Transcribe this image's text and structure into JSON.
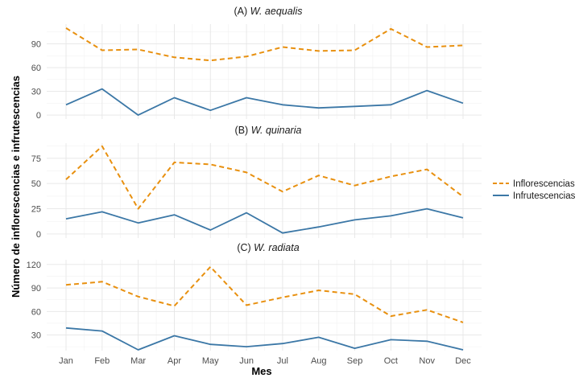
{
  "chart_data": {
    "type": "line",
    "xlabel": "Mes",
    "ylabel": "Número de inflorescencias e infrutescencias",
    "categories": [
      "Jan",
      "Feb",
      "Mar",
      "Apr",
      "May",
      "Jun",
      "Jul",
      "Aug",
      "Sep",
      "Oct",
      "Nov",
      "Dec"
    ],
    "legend": {
      "position": "right",
      "entries": [
        {
          "name": "Inflorescencias",
          "color": "#E8900F",
          "dash": "dashed"
        },
        {
          "name": "Infrutescencias",
          "color": "#3B77A6",
          "dash": "solid"
        }
      ]
    },
    "panels": [
      {
        "title_prefix": "(A) ",
        "title_species": "W. aequalis",
        "ylim": [
          -5,
          115
        ],
        "yticks": [
          0,
          30,
          60,
          90
        ],
        "series": [
          {
            "name": "Inflorescencias",
            "values": [
              110,
              82,
              83,
              73,
              69,
              74,
              86,
              81,
              82,
              109,
              86,
              88
            ]
          },
          {
            "name": "Infrutescencias",
            "values": [
              13,
              33,
              0,
              22,
              6,
              22,
              13,
              9,
              11,
              13,
              31,
              15
            ]
          }
        ]
      },
      {
        "title_prefix": "(B) ",
        "title_species": "W. quinaria",
        "ylim": [
          -4,
          90
        ],
        "yticks": [
          0,
          25,
          50,
          75
        ],
        "series": [
          {
            "name": "Inflorescencias",
            "values": [
              54,
              87,
              25,
              71,
              69,
              61,
              42,
              58,
              48,
              57,
              64,
              37
            ]
          },
          {
            "name": "Infrutescencias",
            "values": [
              15,
              22,
              11,
              19,
              4,
              21,
              1,
              7,
              14,
              18,
              25,
              16
            ]
          }
        ]
      },
      {
        "title_prefix": "(C) ",
        "title_species": "W. radiata",
        "ylim": [
          10,
          126
        ],
        "yticks": [
          30,
          60,
          90,
          120
        ],
        "series": [
          {
            "name": "Inflorescencias",
            "values": [
              94,
              98,
              79,
              67,
              117,
              68,
              78,
              87,
              82,
              54,
              62,
              46
            ]
          },
          {
            "name": "Infrutescencias",
            "values": [
              39,
              35,
              11,
              29,
              18,
              15,
              19,
              27,
              13,
              24,
              22,
              11
            ]
          }
        ]
      }
    ]
  }
}
